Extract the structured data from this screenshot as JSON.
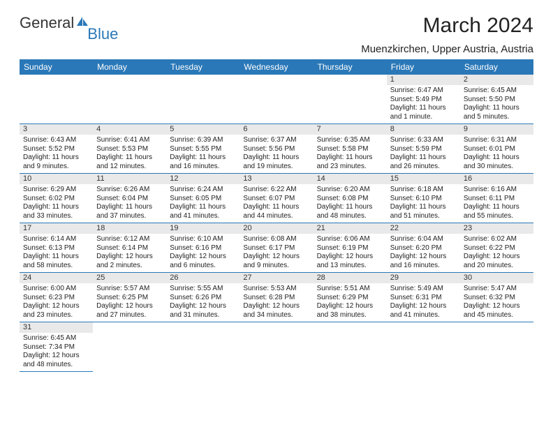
{
  "logo": {
    "text1": "General",
    "text2": "Blue"
  },
  "title": "March 2024",
  "location": "Muenzkirchen, Upper Austria, Austria",
  "colors": {
    "header_bg": "#2a78b8",
    "header_fg": "#ffffff",
    "daynum_bg": "#e9e9e9",
    "rule": "#2a78b8"
  },
  "weekday_labels": [
    "Sunday",
    "Monday",
    "Tuesday",
    "Wednesday",
    "Thursday",
    "Friday",
    "Saturday"
  ],
  "weeks": [
    [
      null,
      null,
      null,
      null,
      null,
      {
        "n": "1",
        "sr": "Sunrise: 6:47 AM",
        "ss": "Sunset: 5:49 PM",
        "dl1": "Daylight: 11 hours",
        "dl2": "and 1 minute."
      },
      {
        "n": "2",
        "sr": "Sunrise: 6:45 AM",
        "ss": "Sunset: 5:50 PM",
        "dl1": "Daylight: 11 hours",
        "dl2": "and 5 minutes."
      }
    ],
    [
      {
        "n": "3",
        "sr": "Sunrise: 6:43 AM",
        "ss": "Sunset: 5:52 PM",
        "dl1": "Daylight: 11 hours",
        "dl2": "and 9 minutes."
      },
      {
        "n": "4",
        "sr": "Sunrise: 6:41 AM",
        "ss": "Sunset: 5:53 PM",
        "dl1": "Daylight: 11 hours",
        "dl2": "and 12 minutes."
      },
      {
        "n": "5",
        "sr": "Sunrise: 6:39 AM",
        "ss": "Sunset: 5:55 PM",
        "dl1": "Daylight: 11 hours",
        "dl2": "and 16 minutes."
      },
      {
        "n": "6",
        "sr": "Sunrise: 6:37 AM",
        "ss": "Sunset: 5:56 PM",
        "dl1": "Daylight: 11 hours",
        "dl2": "and 19 minutes."
      },
      {
        "n": "7",
        "sr": "Sunrise: 6:35 AM",
        "ss": "Sunset: 5:58 PM",
        "dl1": "Daylight: 11 hours",
        "dl2": "and 23 minutes."
      },
      {
        "n": "8",
        "sr": "Sunrise: 6:33 AM",
        "ss": "Sunset: 5:59 PM",
        "dl1": "Daylight: 11 hours",
        "dl2": "and 26 minutes."
      },
      {
        "n": "9",
        "sr": "Sunrise: 6:31 AM",
        "ss": "Sunset: 6:01 PM",
        "dl1": "Daylight: 11 hours",
        "dl2": "and 30 minutes."
      }
    ],
    [
      {
        "n": "10",
        "sr": "Sunrise: 6:29 AM",
        "ss": "Sunset: 6:02 PM",
        "dl1": "Daylight: 11 hours",
        "dl2": "and 33 minutes."
      },
      {
        "n": "11",
        "sr": "Sunrise: 6:26 AM",
        "ss": "Sunset: 6:04 PM",
        "dl1": "Daylight: 11 hours",
        "dl2": "and 37 minutes."
      },
      {
        "n": "12",
        "sr": "Sunrise: 6:24 AM",
        "ss": "Sunset: 6:05 PM",
        "dl1": "Daylight: 11 hours",
        "dl2": "and 41 minutes."
      },
      {
        "n": "13",
        "sr": "Sunrise: 6:22 AM",
        "ss": "Sunset: 6:07 PM",
        "dl1": "Daylight: 11 hours",
        "dl2": "and 44 minutes."
      },
      {
        "n": "14",
        "sr": "Sunrise: 6:20 AM",
        "ss": "Sunset: 6:08 PM",
        "dl1": "Daylight: 11 hours",
        "dl2": "and 48 minutes."
      },
      {
        "n": "15",
        "sr": "Sunrise: 6:18 AM",
        "ss": "Sunset: 6:10 PM",
        "dl1": "Daylight: 11 hours",
        "dl2": "and 51 minutes."
      },
      {
        "n": "16",
        "sr": "Sunrise: 6:16 AM",
        "ss": "Sunset: 6:11 PM",
        "dl1": "Daylight: 11 hours",
        "dl2": "and 55 minutes."
      }
    ],
    [
      {
        "n": "17",
        "sr": "Sunrise: 6:14 AM",
        "ss": "Sunset: 6:13 PM",
        "dl1": "Daylight: 11 hours",
        "dl2": "and 58 minutes."
      },
      {
        "n": "18",
        "sr": "Sunrise: 6:12 AM",
        "ss": "Sunset: 6:14 PM",
        "dl1": "Daylight: 12 hours",
        "dl2": "and 2 minutes."
      },
      {
        "n": "19",
        "sr": "Sunrise: 6:10 AM",
        "ss": "Sunset: 6:16 PM",
        "dl1": "Daylight: 12 hours",
        "dl2": "and 6 minutes."
      },
      {
        "n": "20",
        "sr": "Sunrise: 6:08 AM",
        "ss": "Sunset: 6:17 PM",
        "dl1": "Daylight: 12 hours",
        "dl2": "and 9 minutes."
      },
      {
        "n": "21",
        "sr": "Sunrise: 6:06 AM",
        "ss": "Sunset: 6:19 PM",
        "dl1": "Daylight: 12 hours",
        "dl2": "and 13 minutes."
      },
      {
        "n": "22",
        "sr": "Sunrise: 6:04 AM",
        "ss": "Sunset: 6:20 PM",
        "dl1": "Daylight: 12 hours",
        "dl2": "and 16 minutes."
      },
      {
        "n": "23",
        "sr": "Sunrise: 6:02 AM",
        "ss": "Sunset: 6:22 PM",
        "dl1": "Daylight: 12 hours",
        "dl2": "and 20 minutes."
      }
    ],
    [
      {
        "n": "24",
        "sr": "Sunrise: 6:00 AM",
        "ss": "Sunset: 6:23 PM",
        "dl1": "Daylight: 12 hours",
        "dl2": "and 23 minutes."
      },
      {
        "n": "25",
        "sr": "Sunrise: 5:57 AM",
        "ss": "Sunset: 6:25 PM",
        "dl1": "Daylight: 12 hours",
        "dl2": "and 27 minutes."
      },
      {
        "n": "26",
        "sr": "Sunrise: 5:55 AM",
        "ss": "Sunset: 6:26 PM",
        "dl1": "Daylight: 12 hours",
        "dl2": "and 31 minutes."
      },
      {
        "n": "27",
        "sr": "Sunrise: 5:53 AM",
        "ss": "Sunset: 6:28 PM",
        "dl1": "Daylight: 12 hours",
        "dl2": "and 34 minutes."
      },
      {
        "n": "28",
        "sr": "Sunrise: 5:51 AM",
        "ss": "Sunset: 6:29 PM",
        "dl1": "Daylight: 12 hours",
        "dl2": "and 38 minutes."
      },
      {
        "n": "29",
        "sr": "Sunrise: 5:49 AM",
        "ss": "Sunset: 6:31 PM",
        "dl1": "Daylight: 12 hours",
        "dl2": "and 41 minutes."
      },
      {
        "n": "30",
        "sr": "Sunrise: 5:47 AM",
        "ss": "Sunset: 6:32 PM",
        "dl1": "Daylight: 12 hours",
        "dl2": "and 45 minutes."
      }
    ],
    [
      {
        "n": "31",
        "sr": "Sunrise: 6:45 AM",
        "ss": "Sunset: 7:34 PM",
        "dl1": "Daylight: 12 hours",
        "dl2": "and 48 minutes."
      },
      null,
      null,
      null,
      null,
      null,
      null
    ]
  ]
}
